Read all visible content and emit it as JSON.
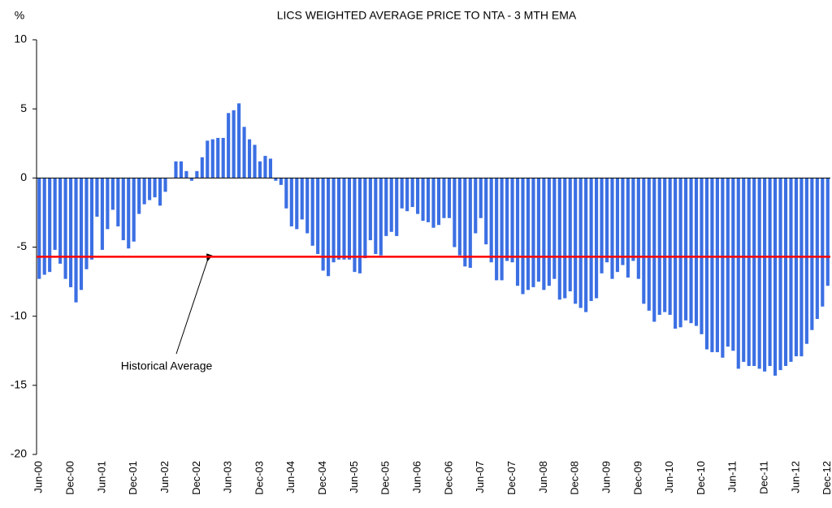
{
  "chart_data": {
    "type": "bar",
    "title": "LICS WEIGHTED AVERAGE PRICE TO NTA - 3 MTH EMA",
    "y_label": "%",
    "categories": [
      "Jun-00",
      null,
      null,
      null,
      null,
      null,
      "Dec-00",
      null,
      null,
      null,
      null,
      null,
      "Jun-01",
      null,
      null,
      null,
      null,
      null,
      "Dec-01",
      null,
      null,
      null,
      null,
      null,
      "Jun-02",
      null,
      null,
      null,
      null,
      null,
      "Dec-02",
      null,
      null,
      null,
      null,
      null,
      "Jun-03",
      null,
      null,
      null,
      null,
      null,
      "Dec-03",
      null,
      null,
      null,
      null,
      null,
      "Jun-04",
      null,
      null,
      null,
      null,
      null,
      "Dec-04",
      null,
      null,
      null,
      null,
      null,
      "Jun-05",
      null,
      null,
      null,
      null,
      null,
      "Dec-05",
      null,
      null,
      null,
      null,
      null,
      "Jun-06",
      null,
      null,
      null,
      null,
      null,
      "Dec-06",
      null,
      null,
      null,
      null,
      null,
      "Jun-07",
      null,
      null,
      null,
      null,
      null,
      "Dec-07",
      null,
      null,
      null,
      null,
      null,
      "Jun-08",
      null,
      null,
      null,
      null,
      null,
      "Dec-08",
      null,
      null,
      null,
      null,
      null,
      "Jun-09",
      null,
      null,
      null,
      null,
      null,
      "Dec-09",
      null,
      null,
      null,
      null,
      null,
      "Jun-10",
      null,
      null,
      null,
      null,
      null,
      "Dec-10",
      null,
      null,
      null,
      null,
      null,
      "Jun-11",
      null,
      null,
      null,
      null,
      null,
      "Dec-11",
      null,
      null,
      null,
      null,
      null,
      "Jun-12",
      null,
      null,
      null,
      null,
      null,
      "Dec-12"
    ],
    "values": [
      -7.3,
      -7.0,
      -6.8,
      -5.2,
      -6.2,
      -7.3,
      -7.9,
      -9.0,
      -8.1,
      -6.6,
      -5.9,
      -2.8,
      -5.2,
      -3.7,
      -2.3,
      -3.5,
      -4.5,
      -5.1,
      -4.6,
      -2.6,
      -1.9,
      -1.6,
      -1.4,
      -2.0,
      -1.0,
      0.0,
      1.2,
      1.2,
      0.5,
      -0.2,
      0.5,
      1.5,
      2.7,
      2.8,
      2.9,
      2.9,
      4.7,
      4.9,
      5.4,
      3.7,
      2.8,
      2.4,
      1.2,
      1.6,
      1.4,
      -0.2,
      -0.5,
      -2.2,
      -3.5,
      -3.7,
      -3.0,
      -4.0,
      -4.9,
      -5.5,
      -6.7,
      -7.1,
      -6.1,
      -5.9,
      -5.9,
      -5.9,
      -6.8,
      -6.9,
      -5.8,
      -4.5,
      -5.5,
      -5.6,
      -4.2,
      -3.9,
      -4.2,
      -2.2,
      -2.4,
      -2.1,
      -2.6,
      -3.1,
      -3.2,
      -3.6,
      -3.4,
      -2.9,
      -2.9,
      -5.0,
      -5.6,
      -6.4,
      -6.5,
      -4.0,
      -2.9,
      -4.8,
      -6.1,
      -7.4,
      -7.4,
      -6.0,
      -6.1,
      -7.8,
      -8.4,
      -8.1,
      -7.9,
      -7.5,
      -8.1,
      -7.8,
      -7.3,
      -8.8,
      -8.7,
      -8.2,
      -9.1,
      -9.4,
      -9.7,
      -8.9,
      -8.7,
      -6.9,
      -6.1,
      -7.3,
      -6.8,
      -6.3,
      -7.2,
      -6.0,
      -7.3,
      -9.1,
      -9.6,
      -10.4,
      -9.9,
      -9.7,
      -9.9,
      -10.9,
      -10.8,
      -10.3,
      -10.5,
      -10.7,
      -11.3,
      -12.4,
      -12.6,
      -12.6,
      -13.0,
      -12.2,
      -12.5,
      -13.8,
      -13.3,
      -13.6,
      -13.6,
      -13.8,
      -14.0,
      -13.6,
      -14.3,
      -13.9,
      -13.6,
      -13.3,
      -12.9,
      -12.9,
      -12.0,
      -11.0,
      -10.2,
      -9.3,
      -7.8
    ],
    "color": "#3b6fe3",
    "reference_line": {
      "value": -5.7,
      "color": "#ff0000",
      "label": "Historical Average"
    },
    "ylim": [
      -20,
      10
    ],
    "yticks": [
      -20,
      -15,
      -10,
      -5,
      0,
      5,
      10
    ],
    "grid": false
  }
}
